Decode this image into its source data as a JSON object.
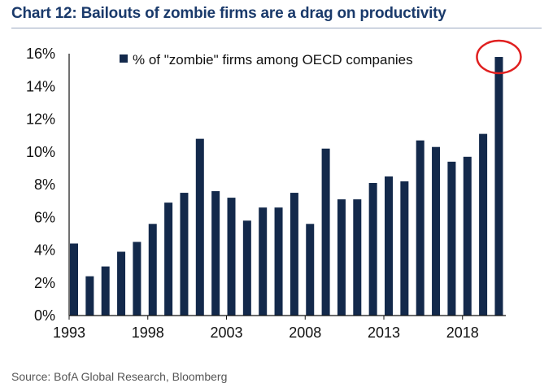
{
  "title": "Chart 12: Bailouts of zombie firms are a drag on productivity",
  "source": "Source: BofA Global Research, Bloomberg",
  "colors": {
    "bar": "#13294b",
    "highlight": "#e02020",
    "title": "#1a3a6b"
  },
  "chart_data": {
    "type": "bar",
    "title": "Chart 12: Bailouts of zombie firms are a drag on productivity",
    "xlabel": "",
    "ylabel": "",
    "ylim": [
      0,
      16
    ],
    "yticks": [
      "0%",
      "2%",
      "4%",
      "6%",
      "8%",
      "10%",
      "12%",
      "14%",
      "16%"
    ],
    "yticks_values": [
      0,
      2,
      4,
      6,
      8,
      10,
      12,
      14,
      16
    ],
    "xtick_labels": [
      "1993",
      "1998",
      "2003",
      "2008",
      "2013",
      "2018"
    ],
    "legend": "% of \"zombie\" firms among OECD companies",
    "legend_position": "top",
    "categories": [
      "1993",
      "1994",
      "1995",
      "1996",
      "1997",
      "1998",
      "1999",
      "2000",
      "2001",
      "2002",
      "2003",
      "2004",
      "2005",
      "2006",
      "2007",
      "2008",
      "2009",
      "2010",
      "2011",
      "2012",
      "2013",
      "2014",
      "2015",
      "2016",
      "2017",
      "2018",
      "2019",
      "2020"
    ],
    "series": [
      {
        "name": "% of \"zombie\" firms among OECD companies",
        "values": [
          4.4,
          2.4,
          3.0,
          3.9,
          4.5,
          5.6,
          6.9,
          7.5,
          10.8,
          7.6,
          7.2,
          5.8,
          6.6,
          6.6,
          7.5,
          5.6,
          10.2,
          7.1,
          7.1,
          8.1,
          8.5,
          8.2,
          10.7,
          10.3,
          9.4,
          9.7,
          11.1,
          15.8
        ]
      }
    ],
    "highlight": "2020"
  }
}
